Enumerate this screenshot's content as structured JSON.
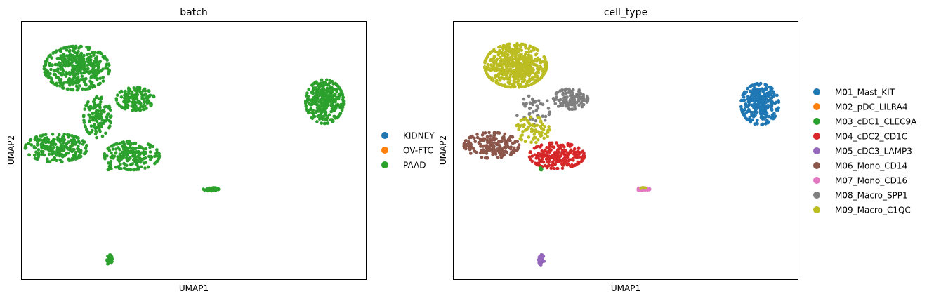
{
  "colors": {
    "M01_Mast_KIT": "#1f77b4",
    "M02_pDC_LILRA4": "#ff7f0e",
    "M03_cDC1_CLEC9A": "#2ca02c",
    "M04_cDC2_CD1C": "#d62728",
    "M05_cDC3_LAMP3": "#9467bd",
    "M06_Mono_CD14": "#8c564b",
    "M07_Mono_CD16": "#e377c2",
    "M08_Macro_SPP1": "#7f7f7f",
    "M09_Macro_C1QC": "#bcbd22",
    "KIDNEY": "#1f77b4",
    "OV-FTC": "#ff7f0e",
    "PAAD": "#2ca02c"
  },
  "chart_data": [
    {
      "type": "scatter",
      "title": "batch",
      "xlabel": "UMAP1",
      "ylabel": "UMAP2",
      "xlim": [
        0,
        10
      ],
      "ylim": [
        0,
        10
      ],
      "grid": false,
      "ticks": false,
      "legend": {
        "placement": "right",
        "entries": [
          "KIDNEY",
          "OV-FTC",
          "PAAD"
        ]
      },
      "color_by": "batch",
      "clusters": [
        {
          "label": "PAAD",
          "center": [
            1.6,
            8.2
          ],
          "spread": [
            0.95,
            0.85
          ],
          "n": 420
        },
        {
          "label": "PAAD",
          "center": [
            3.3,
            7.0
          ],
          "spread": [
            0.55,
            0.45
          ],
          "n": 160
        },
        {
          "label": "PAAD",
          "center": [
            2.2,
            6.3
          ],
          "spread": [
            0.4,
            0.8
          ],
          "n": 140
        },
        {
          "label": "PAAD",
          "center": [
            1.0,
            5.1
          ],
          "spread": [
            0.9,
            0.55
          ],
          "n": 240
        },
        {
          "label": "PAAD",
          "center": [
            3.2,
            4.8
          ],
          "spread": [
            0.8,
            0.55
          ],
          "n": 210
        },
        {
          "label": "PAAD",
          "center": [
            8.8,
            6.9
          ],
          "spread": [
            0.55,
            0.85
          ],
          "n": 300
        },
        {
          "label": "PAAD",
          "center": [
            5.5,
            3.5
          ],
          "spread": [
            0.22,
            0.07
          ],
          "n": 45
        },
        {
          "label": "PAAD",
          "center": [
            2.55,
            0.75
          ],
          "spread": [
            0.08,
            0.2
          ],
          "n": 30
        },
        {
          "label": "PAAD",
          "center": [
            2.55,
            4.3
          ],
          "spread": [
            0.05,
            0.1
          ],
          "n": 6
        }
      ]
    },
    {
      "type": "scatter",
      "title": "cell_type",
      "xlabel": "UMAP1",
      "ylabel": "UMAP2",
      "xlim": [
        0,
        10
      ],
      "ylim": [
        0,
        10
      ],
      "grid": false,
      "ticks": false,
      "legend": {
        "placement": "right",
        "entries": [
          "M01_Mast_KIT",
          "M02_pDC_LILRA4",
          "M03_cDC1_CLEC9A",
          "M04_cDC2_CD1C",
          "M05_cDC3_LAMP3",
          "M06_Mono_CD14",
          "M07_Mono_CD16",
          "M08_Macro_SPP1",
          "M09_Macro_C1QC"
        ]
      },
      "color_by": "cell_type",
      "clusters": [
        {
          "label": "M09_Macro_C1QC",
          "center": [
            1.8,
            8.3
          ],
          "spread": [
            0.9,
            0.85
          ],
          "n": 520
        },
        {
          "label": "M08_Macro_SPP1",
          "center": [
            3.4,
            7.0
          ],
          "spread": [
            0.5,
            0.4
          ],
          "n": 120
        },
        {
          "label": "M08_Macro_SPP1",
          "center": [
            2.3,
            6.6
          ],
          "spread": [
            0.5,
            0.6
          ],
          "n": 40
        },
        {
          "label": "M06_Mono_CD14",
          "center": [
            1.1,
            5.2
          ],
          "spread": [
            0.8,
            0.5
          ],
          "n": 200
        },
        {
          "label": "M04_cDC2_CD1C",
          "center": [
            3.0,
            4.8
          ],
          "spread": [
            0.8,
            0.5
          ],
          "n": 220
        },
        {
          "label": "M09_Macro_C1QC",
          "center": [
            2.3,
            5.8
          ],
          "spread": [
            0.5,
            0.5
          ],
          "n": 70
        },
        {
          "label": "M01_Mast_KIT",
          "center": [
            8.9,
            6.8
          ],
          "spread": [
            0.55,
            0.8
          ],
          "n": 300
        },
        {
          "label": "M07_Mono_CD16",
          "center": [
            5.5,
            3.5
          ],
          "spread": [
            0.2,
            0.05
          ],
          "n": 40
        },
        {
          "label": "M05_cDC3_LAMP3",
          "center": [
            2.55,
            0.75
          ],
          "spread": [
            0.08,
            0.2
          ],
          "n": 30
        },
        {
          "label": "M03_cDC1_CLEC9A",
          "center": [
            2.55,
            4.3
          ],
          "spread": [
            0.05,
            0.1
          ],
          "n": 6
        },
        {
          "label": "M09_Macro_C1QC",
          "center": [
            5.5,
            3.55
          ],
          "spread": [
            0.08,
            0.03
          ],
          "n": 4
        }
      ]
    }
  ]
}
